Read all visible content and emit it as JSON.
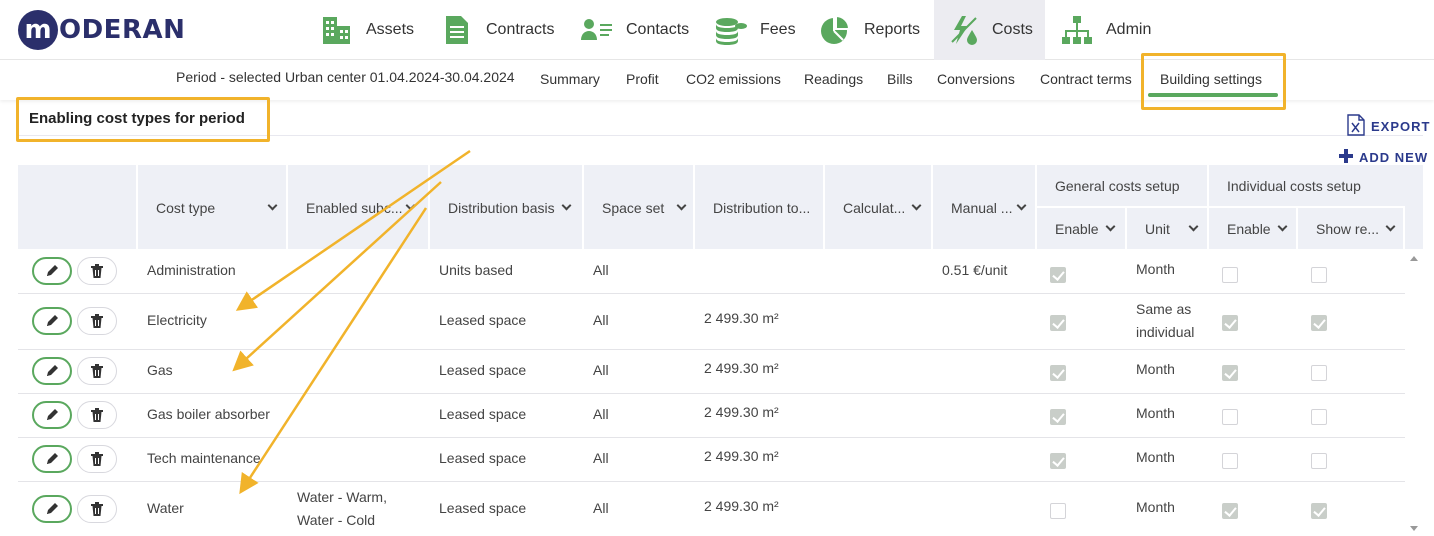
{
  "app": {
    "logo_letter": "m",
    "logo_text": "ODERAN"
  },
  "nav": {
    "assets": "Assets",
    "contracts": "Contracts",
    "contacts": "Contacts",
    "fees": "Fees",
    "reports": "Reports",
    "costs": "Costs",
    "admin": "Admin",
    "active": "Costs",
    "icon_color": "#5aa85e"
  },
  "subnav": {
    "period": "Period - selected Urban center 01.04.2024-30.04.2024",
    "summary": "Summary",
    "profit": "Profit",
    "co2": "CO2 emissions",
    "readings": "Readings",
    "bills": "Bills",
    "conversions": "Conversions",
    "contract_terms": "Contract terms",
    "building_settings": "Building settings",
    "active": "Building settings"
  },
  "page": {
    "section_title": "Enabling cost types for period",
    "export": "EXPORT",
    "add_new": "ADD NEW",
    "highlight_color": "#f1b32b"
  },
  "table": {
    "headers": {
      "cost_type": "Cost type",
      "enabled_sub": "Enabled subc...",
      "distribution_basis": "Distribution basis",
      "space_set": "Space set",
      "distribution_to": "Distribution to...",
      "calculat": "Calculat...",
      "manual": "Manual ...",
      "general_costs_setup": "General costs setup",
      "individual_costs_setup": "Individual costs setup",
      "gen_enable": "Enable",
      "gen_unit": "Unit",
      "ind_enable": "Enable",
      "ind_show": "Show re..."
    },
    "rows": [
      {
        "cost_type": "Administration",
        "enabled_sub": [
          "",
          ""
        ],
        "basis": "Units based",
        "space_set": "All",
        "distribution": "",
        "manual": "0.51 €/unit",
        "gen_enable": true,
        "gen_unit": [
          "Month",
          ""
        ],
        "ind_enable": false,
        "ind_show": false
      },
      {
        "cost_type": "Electricity",
        "enabled_sub": [
          "",
          ""
        ],
        "basis": "Leased space",
        "space_set": "All",
        "distribution": "2 499.30 m²",
        "manual": "",
        "gen_enable": true,
        "gen_unit": [
          "Same as",
          "individual"
        ],
        "ind_enable": true,
        "ind_show": true
      },
      {
        "cost_type": "Gas",
        "enabled_sub": [
          "",
          ""
        ],
        "basis": "Leased space",
        "space_set": "All",
        "distribution": "2 499.30 m²",
        "manual": "",
        "gen_enable": true,
        "gen_unit": [
          "Month",
          ""
        ],
        "ind_enable": true,
        "ind_show": false
      },
      {
        "cost_type": "Gas boiler absorber",
        "enabled_sub": [
          "",
          ""
        ],
        "basis": "Leased space",
        "space_set": "All",
        "distribution": "2 499.30 m²",
        "manual": "",
        "gen_enable": true,
        "gen_unit": [
          "Month",
          ""
        ],
        "ind_enable": false,
        "ind_show": false
      },
      {
        "cost_type": "Tech maintenance",
        "enabled_sub": [
          "",
          ""
        ],
        "basis": "Leased space",
        "space_set": "All",
        "distribution": "2 499.30 m²",
        "manual": "",
        "gen_enable": true,
        "gen_unit": [
          "Month",
          ""
        ],
        "ind_enable": false,
        "ind_show": false
      },
      {
        "cost_type": "Water",
        "enabled_sub": [
          "Water - Warm,",
          "Water - Cold"
        ],
        "basis": "Leased space",
        "space_set": "All",
        "distribution": "2 499.30 m²",
        "manual": "",
        "gen_enable": false,
        "gen_unit": [
          "Month",
          ""
        ],
        "ind_enable": true,
        "ind_show": true
      }
    ]
  }
}
